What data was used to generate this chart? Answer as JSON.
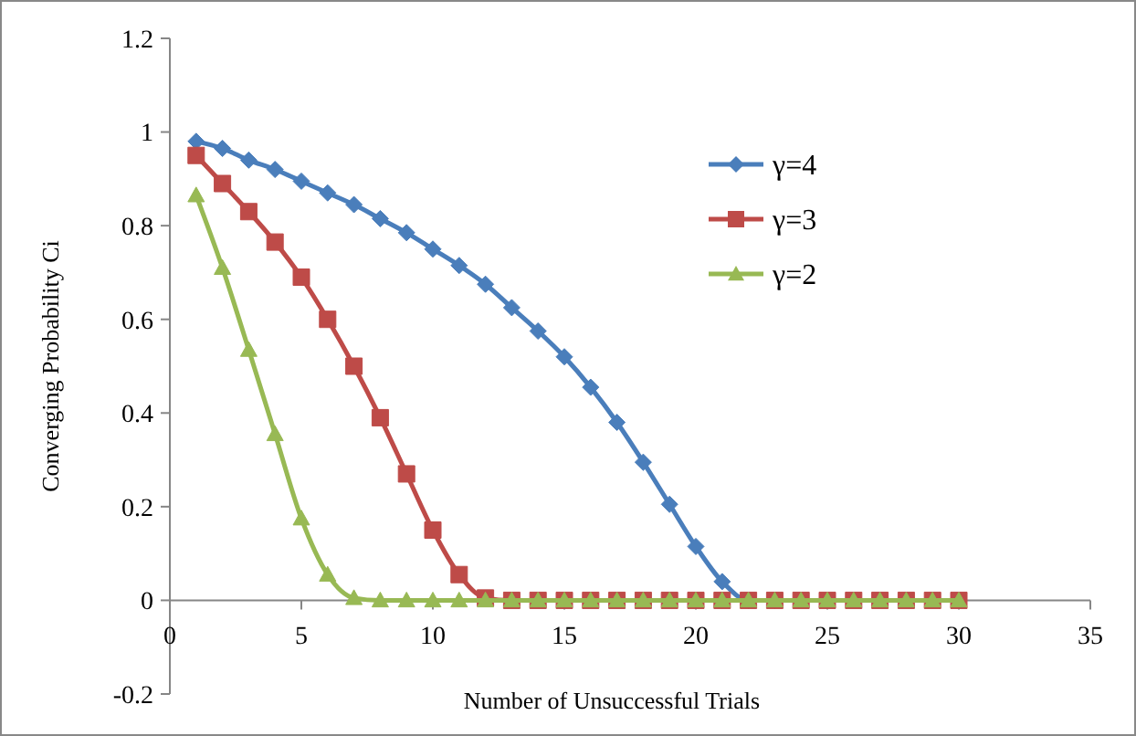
{
  "chart_data": {
    "type": "line",
    "xlabel": "Number of  Unsuccessful Trials",
    "ylabel": "Converging Probability Ci",
    "x": [
      1,
      2,
      3,
      4,
      5,
      6,
      7,
      8,
      9,
      10,
      11,
      12,
      13,
      14,
      15,
      16,
      17,
      18,
      19,
      20,
      21,
      22,
      23,
      24,
      25,
      26,
      27,
      28,
      29,
      30
    ],
    "series": [
      {
        "name": "γ=4",
        "color": "#4a7ebb",
        "marker": "diamond",
        "values": [
          0.98,
          0.965,
          0.94,
          0.92,
          0.895,
          0.87,
          0.845,
          0.815,
          0.785,
          0.75,
          0.715,
          0.675,
          0.625,
          0.575,
          0.52,
          0.455,
          0.38,
          0.295,
          0.205,
          0.115,
          0.04,
          0,
          0,
          null,
          null,
          null,
          null,
          null,
          null,
          null
        ]
      },
      {
        "name": "γ=3",
        "color": "#be4b48",
        "marker": "square",
        "values": [
          0.95,
          0.89,
          0.83,
          0.765,
          0.69,
          0.6,
          0.5,
          0.39,
          0.27,
          0.15,
          0.055,
          0.005,
          0,
          0,
          0,
          0,
          0,
          0,
          0,
          0,
          0,
          0,
          0,
          0,
          0,
          0,
          0,
          0,
          0,
          0
        ]
      },
      {
        "name": "γ=2",
        "color": "#98b954",
        "marker": "triangle",
        "values": [
          0.865,
          0.71,
          0.535,
          0.355,
          0.175,
          0.055,
          0.005,
          0,
          0,
          0,
          0,
          0,
          0,
          0,
          0,
          0,
          0,
          0,
          0,
          0,
          0,
          0,
          0,
          0,
          0,
          0,
          0,
          0,
          0,
          0
        ]
      }
    ],
    "xlim": [
      0,
      35
    ],
    "xticks": [
      0,
      5,
      10,
      15,
      20,
      25,
      30,
      35
    ],
    "ylim": [
      -0.2,
      1.2
    ],
    "yticks": [
      -0.2,
      0,
      0.2,
      0.4,
      0.6,
      0.8,
      1,
      1.2
    ],
    "grid": false,
    "legend": "top right",
    "line_style": "solid"
  }
}
